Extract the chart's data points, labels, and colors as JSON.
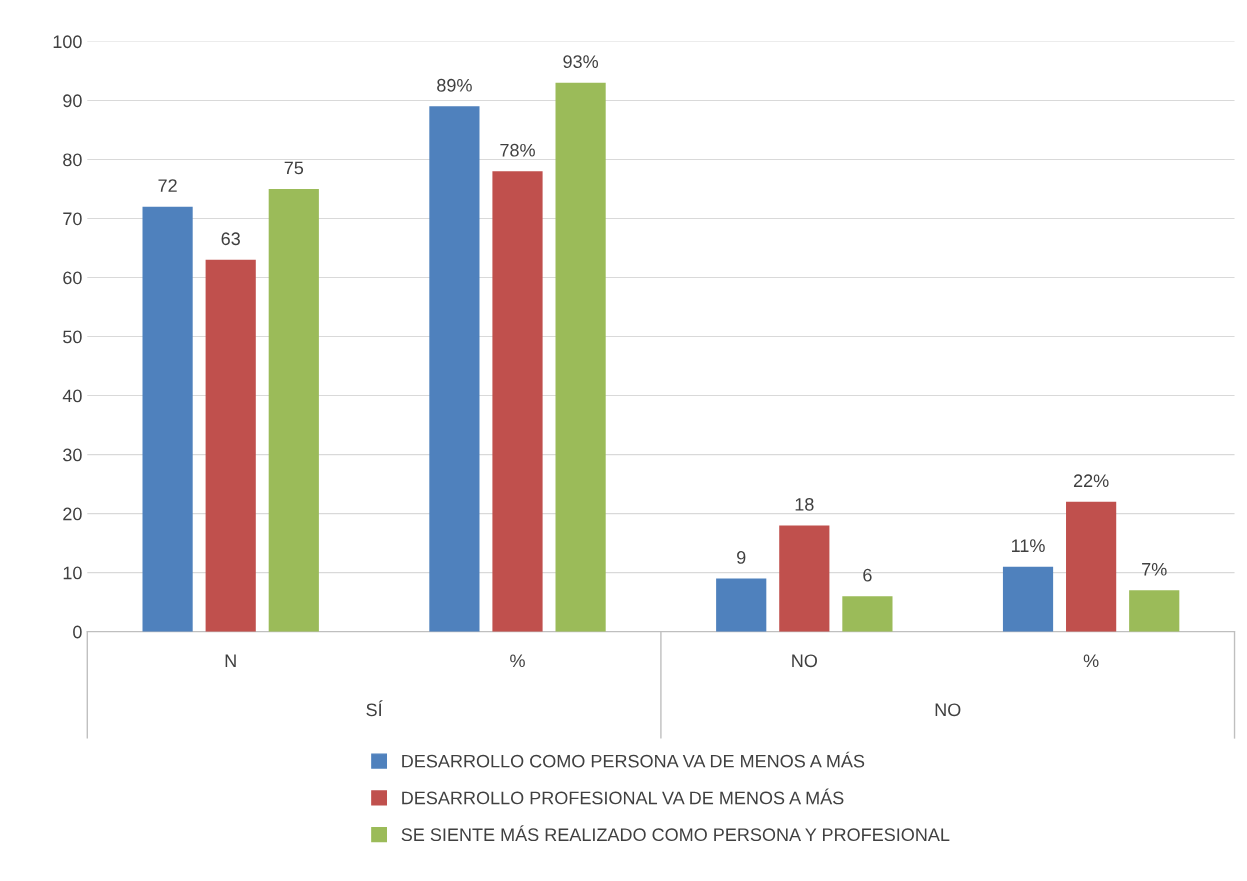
{
  "chart_data": {
    "type": "bar",
    "categories": [
      "N",
      "%",
      "NO",
      "%"
    ],
    "annotations": [
      "SÍ",
      "NO"
    ],
    "series": [
      {
        "name": "DESARROLLO COMO PERSONA VA DE MENOS A MÁS",
        "color": "#4f81bd",
        "values": [
          72,
          89,
          9,
          11
        ],
        "value_labels": [
          "72",
          "89%",
          "9",
          "11%"
        ]
      },
      {
        "name": "DESARROLLO PROFESIONAL VA DE MENOS A MÁS",
        "color": "#c0504d",
        "values": [
          63,
          78,
          18,
          22
        ],
        "value_labels": [
          "63",
          "78%",
          "18",
          "22%"
        ]
      },
      {
        "name": "SE SIENTE MÁS REALIZADO COMO PERSONA Y PROFESIONAL",
        "color": "#9bbb59",
        "values": [
          75,
          93,
          6,
          7
        ],
        "value_labels": [
          "75",
          "93%",
          "6",
          "7%"
        ]
      }
    ],
    "ylim": [
      0,
      100
    ],
    "yticks": [
      0,
      10,
      20,
      30,
      40,
      50,
      60,
      70,
      80,
      90,
      100
    ],
    "grid": "y",
    "legend": "bottom"
  }
}
